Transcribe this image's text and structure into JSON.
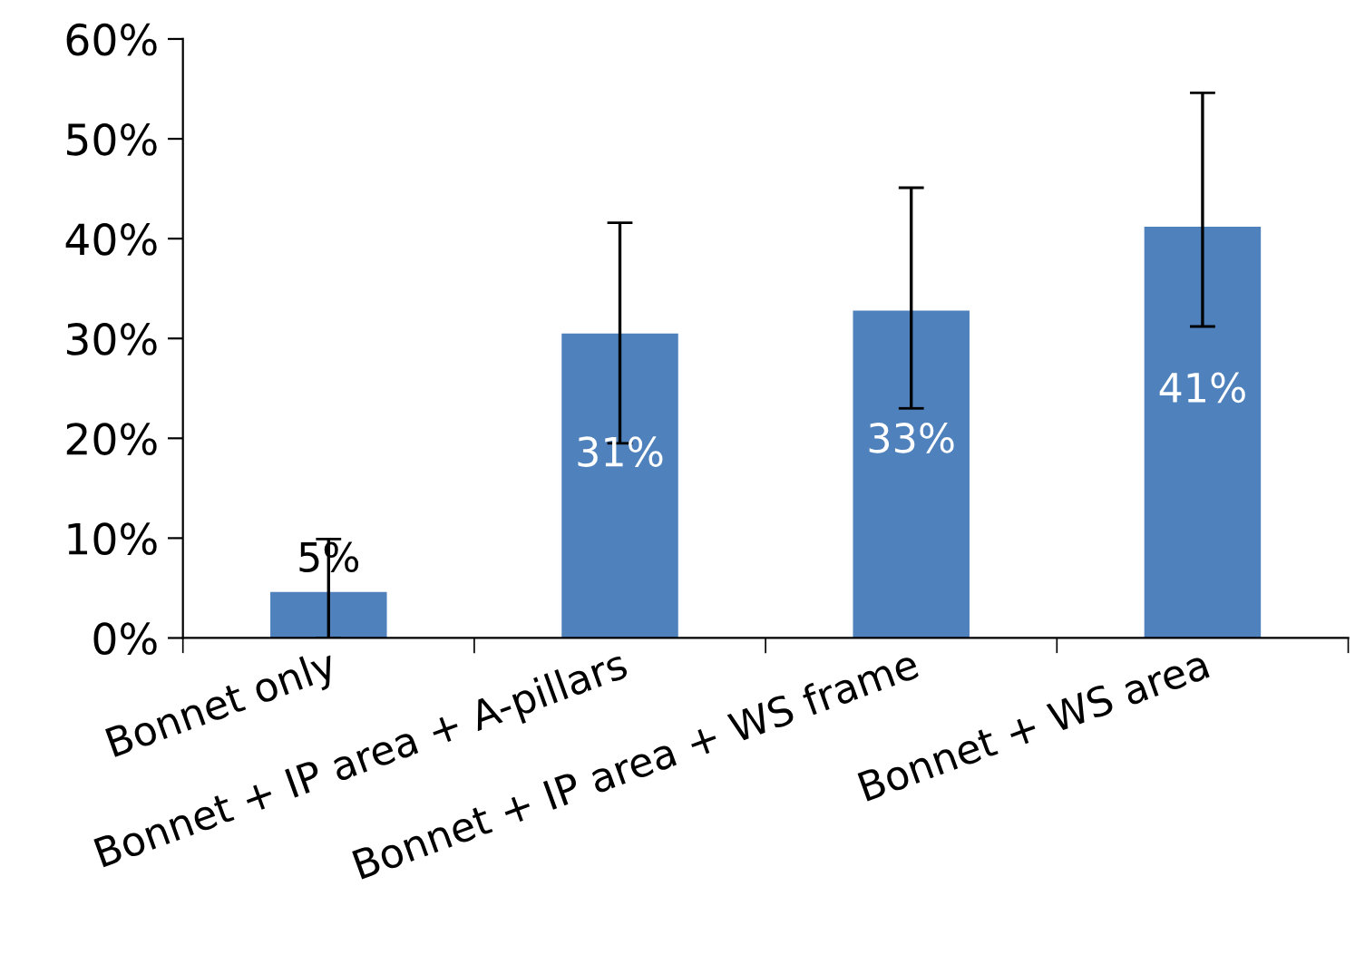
{
  "chart_data": {
    "type": "bar",
    "categories": [
      "Bonnet only",
      "Bonnet + IP area + A-pillars",
      "Bonnet + IP area + WS frame",
      "Bonnet + WS area"
    ],
    "values": [
      4.6,
      30.5,
      32.8,
      41.2
    ],
    "errors": [
      [
        0,
        9.9
      ],
      [
        19.5,
        41.6
      ],
      [
        23.0,
        45.1
      ],
      [
        31.2,
        54.6
      ]
    ],
    "value_labels": [
      "5%",
      "31%",
      "33%",
      "41%"
    ],
    "color": "#4f81bd",
    "ylim": [
      0,
      60
    ],
    "yticks": [
      {
        "value": 0,
        "label": "0%"
      },
      {
        "value": 10,
        "label": "10%"
      },
      {
        "value": 20,
        "label": "20%"
      },
      {
        "value": 30,
        "label": "30%"
      },
      {
        "value": 40,
        "label": "40%"
      },
      {
        "value": 50,
        "label": "50%"
      },
      {
        "value": 60,
        "label": "60%"
      }
    ],
    "grid": false,
    "legend": false
  }
}
